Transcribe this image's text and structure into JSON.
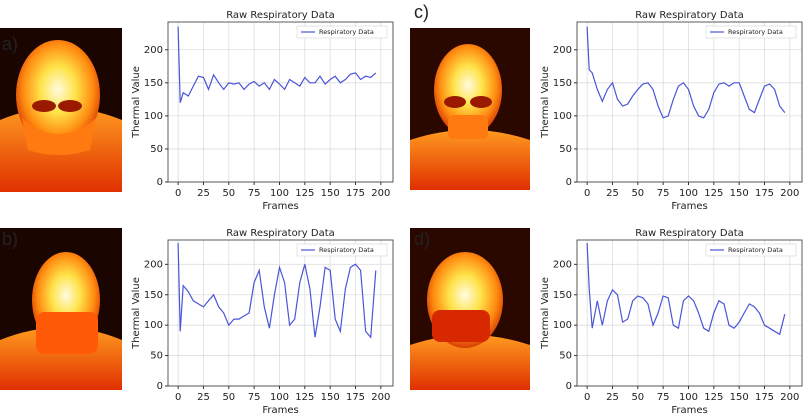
{
  "chart_data": [
    {
      "type": "line",
      "panel_label": "a)",
      "title": "Raw Respiratory Data",
      "xlabel": "Frames",
      "ylabel": "Thermal Value",
      "grid": true,
      "legend": "upper right",
      "xlim": [
        -10,
        212
      ],
      "ylim": [
        0,
        242
      ],
      "xticks": [
        0,
        25,
        50,
        75,
        100,
        125,
        150,
        175,
        200
      ],
      "yticks": [
        0,
        50,
        100,
        150,
        200
      ],
      "x": [
        0,
        2,
        5,
        10,
        15,
        20,
        25,
        30,
        35,
        40,
        45,
        50,
        55,
        60,
        65,
        70,
        75,
        80,
        85,
        90,
        95,
        100,
        105,
        110,
        115,
        120,
        125,
        130,
        135,
        140,
        145,
        150,
        155,
        160,
        165,
        170,
        175,
        180,
        185,
        190,
        195
      ],
      "series": [
        {
          "name": "Respiratory Data",
          "color": "#4a55d8",
          "values": [
            235,
            120,
            135,
            130,
            145,
            160,
            158,
            140,
            162,
            150,
            140,
            150,
            148,
            150,
            140,
            148,
            152,
            145,
            150,
            140,
            155,
            148,
            140,
            155,
            150,
            145,
            158,
            150,
            150,
            160,
            148,
            155,
            160,
            150,
            155,
            163,
            165,
            155,
            160,
            158,
            165
          ]
        }
      ]
    },
    {
      "type": "line",
      "panel_label": "c)",
      "title": "Raw Respiratory Data",
      "xlabel": "Frames",
      "ylabel": "Thermal Value",
      "grid": true,
      "legend": "upper right",
      "xlim": [
        -10,
        212
      ],
      "ylim": [
        0,
        242
      ],
      "xticks": [
        0,
        25,
        50,
        75,
        100,
        125,
        150,
        175,
        200
      ],
      "yticks": [
        0,
        50,
        100,
        150,
        200
      ],
      "x": [
        0,
        2,
        5,
        10,
        15,
        20,
        25,
        30,
        35,
        40,
        45,
        50,
        55,
        60,
        65,
        70,
        75,
        80,
        85,
        90,
        95,
        100,
        105,
        110,
        115,
        120,
        125,
        130,
        135,
        140,
        145,
        150,
        155,
        160,
        165,
        170,
        175,
        180,
        185,
        190,
        195
      ],
      "series": [
        {
          "name": "Respiratory Data",
          "color": "#4a55d8",
          "values": [
            235,
            170,
            165,
            140,
            122,
            140,
            150,
            125,
            115,
            118,
            130,
            140,
            148,
            150,
            140,
            115,
            97,
            100,
            125,
            145,
            150,
            140,
            115,
            100,
            97,
            110,
            135,
            148,
            150,
            145,
            150,
            150,
            130,
            110,
            105,
            125,
            145,
            148,
            140,
            115,
            105
          ]
        }
      ]
    },
    {
      "type": "line",
      "panel_label": "b)",
      "title": "Raw Respiratory Data",
      "xlabel": "Frames",
      "ylabel": "Thermal Value",
      "grid": true,
      "legend": "upper right",
      "xlim": [
        -10,
        212
      ],
      "ylim": [
        0,
        240
      ],
      "xticks": [
        0,
        25,
        50,
        75,
        100,
        125,
        150,
        175,
        200
      ],
      "yticks": [
        0,
        50,
        100,
        150,
        200
      ],
      "x": [
        0,
        2,
        5,
        10,
        15,
        20,
        25,
        30,
        35,
        40,
        45,
        50,
        55,
        60,
        65,
        70,
        75,
        80,
        85,
        90,
        95,
        100,
        105,
        110,
        115,
        120,
        125,
        130,
        135,
        140,
        145,
        150,
        155,
        160,
        165,
        170,
        175,
        180,
        185,
        190,
        195
      ],
      "series": [
        {
          "name": "Respiratory Data",
          "color": "#4a55d8",
          "values": [
            235,
            90,
            165,
            155,
            140,
            135,
            130,
            140,
            150,
            130,
            120,
            100,
            110,
            110,
            115,
            120,
            170,
            190,
            130,
            95,
            150,
            195,
            170,
            100,
            110,
            170,
            200,
            160,
            80,
            130,
            195,
            190,
            110,
            90,
            160,
            195,
            200,
            190,
            90,
            80,
            190
          ]
        }
      ]
    },
    {
      "type": "line",
      "panel_label": "d)",
      "title": "Raw Respiratory Data",
      "xlabel": "Frames",
      "ylabel": "Thermal Value",
      "grid": true,
      "legend": "upper right",
      "xlim": [
        -10,
        212
      ],
      "ylim": [
        0,
        240
      ],
      "xticks": [
        0,
        25,
        50,
        75,
        100,
        125,
        150,
        175,
        200
      ],
      "yticks": [
        0,
        50,
        100,
        150,
        200
      ],
      "x": [
        0,
        2,
        5,
        10,
        15,
        20,
        25,
        30,
        35,
        40,
        45,
        50,
        55,
        60,
        65,
        70,
        75,
        80,
        85,
        90,
        95,
        100,
        105,
        110,
        115,
        120,
        125,
        130,
        135,
        140,
        145,
        150,
        155,
        160,
        165,
        170,
        175,
        180,
        185,
        190,
        195
      ],
      "series": [
        {
          "name": "Respiratory Data",
          "color": "#4a55d8",
          "values": [
            235,
            160,
            95,
            140,
            100,
            140,
            158,
            150,
            105,
            110,
            140,
            148,
            145,
            135,
            100,
            120,
            148,
            145,
            100,
            95,
            140,
            148,
            140,
            120,
            95,
            90,
            120,
            140,
            135,
            100,
            95,
            105,
            120,
            135,
            130,
            120,
            100,
            95,
            90,
            85,
            118
          ]
        }
      ]
    }
  ]
}
